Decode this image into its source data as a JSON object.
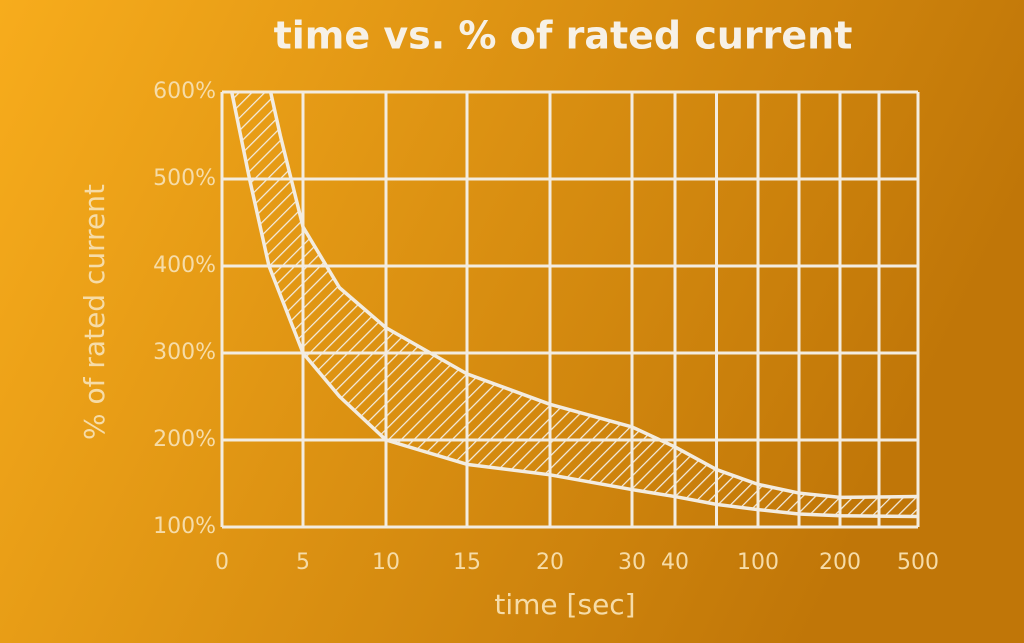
{
  "chart_data": {
    "type": "band",
    "title": "time vs. % of rated current",
    "xlabel": "time [sec]",
    "ylabel": "% of rated current",
    "xticks": [
      0,
      5,
      10,
      15,
      20,
      30,
      40,
      100,
      200,
      500
    ],
    "ylim": [
      100,
      600
    ],
    "yticks": [
      {
        "value": 100,
        "label": "100%"
      },
      {
        "value": 200,
        "label": "200%"
      },
      {
        "value": 300,
        "label": "300%"
      },
      {
        "value": 400,
        "label": "400%"
      },
      {
        "value": 500,
        "label": "500%"
      },
      {
        "value": 600,
        "label": "600%"
      }
    ],
    "grid": true,
    "color": "#f3ece0",
    "series": [
      {
        "x": [
          0.6,
          1.7,
          2.9,
          5,
          7.2,
          10,
          15,
          20,
          30,
          40,
          70,
          100,
          150,
          200,
          500
        ],
        "values": [
          600,
          500,
          400,
          300,
          250,
          200,
          172,
          160,
          143,
          135,
          126,
          120,
          115,
          113,
          112
        ]
      },
      {
        "x": [
          3.0,
          3.6,
          5,
          7.2,
          10,
          15,
          20,
          30,
          40,
          70,
          100,
          150,
          200,
          500
        ],
        "values": [
          600,
          550,
          445,
          375,
          329,
          276,
          241,
          215,
          192,
          166,
          149,
          139,
          134,
          135
        ]
      }
    ]
  }
}
